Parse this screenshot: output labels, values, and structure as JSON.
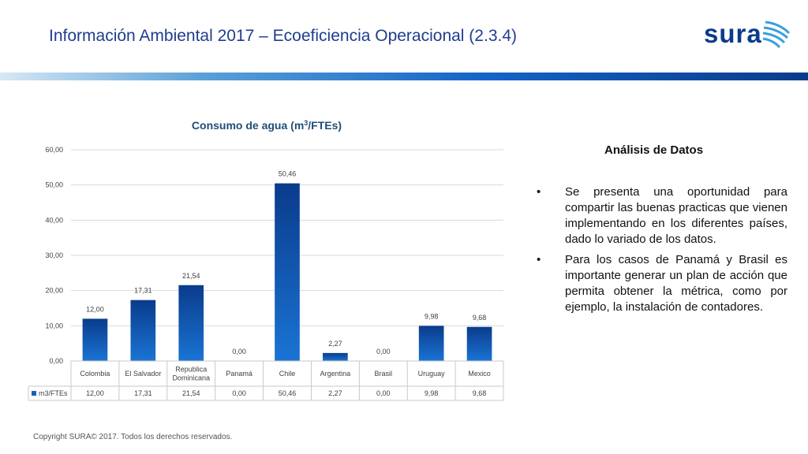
{
  "header": {
    "title": "Información Ambiental 2017 – Ecoeficiencia Operacional (2.3.4)",
    "logo_text": "sura"
  },
  "colors": {
    "title": "#1f3d8f",
    "bar_top": "#0a3b8c",
    "bar_bottom": "#1a74d4",
    "logo": "#0a3b8c",
    "logo_wing": "#3aa0dc"
  },
  "chart_data": {
    "type": "bar",
    "title": "Consumo de agua (m3/FTEs)",
    "title_main": "Consumo de agua (m",
    "title_sup": "3",
    "title_tail": "/FTEs)",
    "categories": [
      "Colombia",
      "El Salvador",
      "Republica Dominicana",
      "Panamá",
      "Chile",
      "Argentina",
      "Brasil",
      "Uruguay",
      "Mexico"
    ],
    "category_lines": [
      [
        "Colombia"
      ],
      [
        "El Salvador"
      ],
      [
        "Republica",
        "Dominicana"
      ],
      [
        "Panamá"
      ],
      [
        "Chile"
      ],
      [
        "Argentina"
      ],
      [
        "Brasil"
      ],
      [
        "Uruguay"
      ],
      [
        "Mexico"
      ]
    ],
    "series": [
      {
        "name": "m3/FTEs",
        "values": [
          12.0,
          17.31,
          21.54,
          0.0,
          50.46,
          2.27,
          0.0,
          9.98,
          9.68
        ]
      }
    ],
    "value_labels": [
      "12,00",
      "17,31",
      "21,54",
      "0,00",
      "50,46",
      "2,27",
      "0,00",
      "9,98",
      "9,68"
    ],
    "ylim": [
      0,
      60
    ],
    "yticks": [
      0,
      10,
      20,
      30,
      40,
      50,
      60
    ],
    "ytick_labels": [
      "0,00",
      "10,00",
      "20,00",
      "30,00",
      "40,00",
      "50,00",
      "60,00"
    ],
    "grid": true,
    "legend": "data-table"
  },
  "analysis": {
    "title": "Análisis de Datos",
    "bullet_symbol": "•",
    "bullets": [
      "Se presenta una oportunidad para compartir las buenas practicas que vienen implementando en los diferentes países, dado lo variado de los datos.",
      "Para los casos de Panamá y Brasil es importante generar un plan de acción que permita obtener la métrica, como por ejemplo, la instalación de contadores."
    ]
  },
  "footer": {
    "copyright": "Copyright SURA© 2017. Todos los derechos reservados."
  }
}
